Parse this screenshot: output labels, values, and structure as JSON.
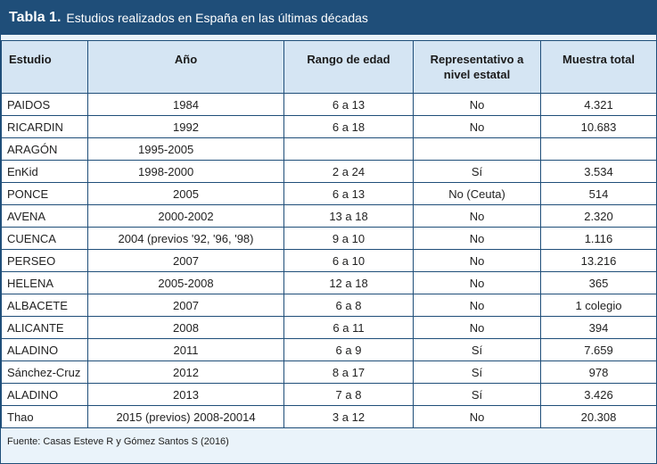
{
  "title": {
    "number": "Tabla 1.",
    "text": "Estudios realizados en España en las últimas décadas"
  },
  "headers": [
    "Estudio",
    "Año",
    "Rango de edad",
    "Representativo a nivel estatal",
    "Muestra total"
  ],
  "rows": [
    [
      "PAIDOS",
      "1984",
      "6 a 13",
      "No",
      "4.321"
    ],
    [
      "RICARDIN",
      "1992",
      "6 a 18",
      "No",
      "10.683"
    ],
    [
      "ARAGÓN",
      "1995-2005",
      "",
      "",
      ""
    ],
    [
      "EnKid",
      "1998-2000",
      "2 a 24",
      "Sí",
      "3.534"
    ],
    [
      "PONCE",
      "2005",
      "6 a 13",
      "No (Ceuta)",
      "514"
    ],
    [
      "AVENA",
      "2000-2002",
      "13 a 18",
      "No",
      "2.320"
    ],
    [
      "CUENCA",
      "2004 (previos '92, '96, '98)",
      "9 a 10",
      "No",
      "1.116"
    ],
    [
      "PERSEO",
      "2007",
      "6 a 10",
      "No",
      "13.216"
    ],
    [
      "HELENA",
      "2005-2008",
      "12 a 18",
      "No",
      "365"
    ],
    [
      "ALBACETE",
      "2007",
      "6 a 8",
      "No",
      "1 colegio"
    ],
    [
      "ALICANTE",
      "2008",
      "6 a 11",
      "No",
      "394"
    ],
    [
      "ALADINO",
      "2011",
      "6 a 9",
      "Sí",
      "7.659"
    ],
    [
      "Sánchez-Cruz",
      "2012",
      "8 a 17",
      "Sí",
      "978"
    ],
    [
      "ALADINO",
      "2013",
      "7 a 8",
      "Sí",
      "3.426"
    ],
    [
      "Thao",
      "2015 (previos) 2008-20014",
      "3 a 12",
      "No",
      "20.308"
    ]
  ],
  "source": "Fuente: Casas Esteve R y Gómez Santos S (2016)"
}
